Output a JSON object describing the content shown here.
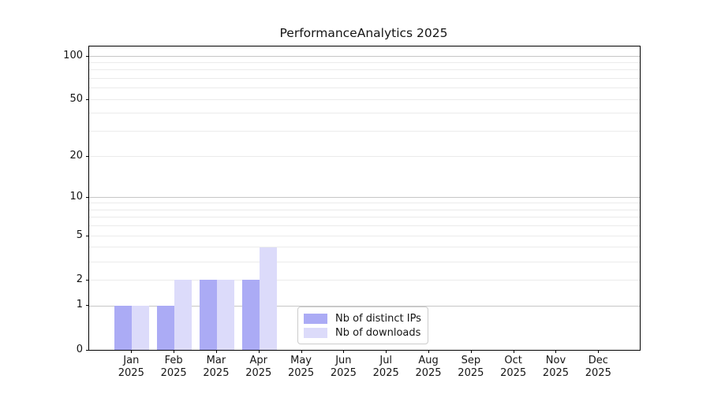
{
  "title": "PerformanceAnalytics 2025",
  "chart_data": {
    "type": "bar",
    "title": "PerformanceAnalytics 2025",
    "categories": [
      "Jan",
      "Feb",
      "Mar",
      "Apr",
      "May",
      "Jun",
      "Jul",
      "Aug",
      "Sep",
      "Oct",
      "Nov",
      "Dec"
    ],
    "year_label": "2025",
    "series": [
      {
        "name": "Nb of distinct IPs",
        "color": "#ababf5",
        "values": [
          1,
          1,
          2,
          2,
          0,
          0,
          0,
          0,
          0,
          0,
          0,
          0
        ]
      },
      {
        "name": "Nb of downloads",
        "color": "#dcdbfa",
        "values": [
          1,
          2,
          2,
          4,
          0,
          0,
          0,
          0,
          0,
          0,
          0,
          0
        ]
      }
    ],
    "xlabel": "",
    "ylabel": "",
    "yscale": "log1p",
    "ylim": [
      0,
      116
    ],
    "y_ticks": [
      0,
      1,
      2,
      5,
      10,
      20,
      50,
      100
    ],
    "y_major_gridlines": [
      1,
      10,
      100
    ],
    "y_minor_gridlines": [
      2,
      3,
      4,
      5,
      6,
      7,
      8,
      9,
      20,
      30,
      40,
      50,
      60,
      70,
      80,
      90
    ],
    "grid": true,
    "legend_position": "lower center"
  },
  "colors": {
    "bar_distinct_ips": "#ababf5",
    "bar_downloads": "#dcdbfa",
    "grid_major": "#c6c6c6",
    "grid_minor": "#ebebeb",
    "axis": "#000000",
    "text": "#151515",
    "legend_border": "#cccccc",
    "background": "#ffffff"
  }
}
